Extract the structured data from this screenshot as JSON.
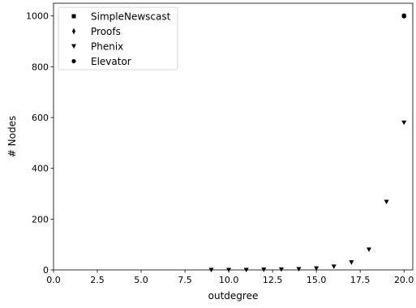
{
  "chart_data": {
    "type": "scatter",
    "xlabel": "outdegree",
    "ylabel": "# Nodes",
    "xlim": [
      0.0,
      20.5
    ],
    "ylim": [
      0,
      1050
    ],
    "x_ticks": [
      0.0,
      2.5,
      5.0,
      7.5,
      10.0,
      12.5,
      15.0,
      17.5,
      20.0
    ],
    "x_tick_labels": [
      "0.0",
      "2.5",
      "5.0",
      "7.5",
      "10.0",
      "12.5",
      "15.0",
      "17.5",
      "20.0"
    ],
    "y_ticks": [
      0,
      200,
      400,
      600,
      800,
      1000
    ],
    "y_tick_labels": [
      "0",
      "200",
      "400",
      "600",
      "800",
      "1000"
    ],
    "grid": false,
    "legend_position": "top-left",
    "series": [
      {
        "name": "SimpleNewscast",
        "marker": "square",
        "color": "#000000",
        "x": [
          20
        ],
        "y": [
          1000
        ]
      },
      {
        "name": "Proofs",
        "marker": "thin-diamond",
        "color": "#000000",
        "x": [
          20
        ],
        "y": [
          1000
        ]
      },
      {
        "name": "Phenix",
        "marker": "triangle-down",
        "color": "#000000",
        "x": [
          9,
          10,
          11,
          12,
          13,
          14,
          15,
          16,
          17,
          18,
          19,
          20
        ],
        "y": [
          0,
          0,
          0,
          1,
          2,
          3,
          6,
          13,
          30,
          80,
          268,
          580
        ]
      },
      {
        "name": "Elevator",
        "marker": "circle",
        "color": "#000000",
        "x": [
          20
        ],
        "y": [
          1000
        ]
      }
    ]
  }
}
